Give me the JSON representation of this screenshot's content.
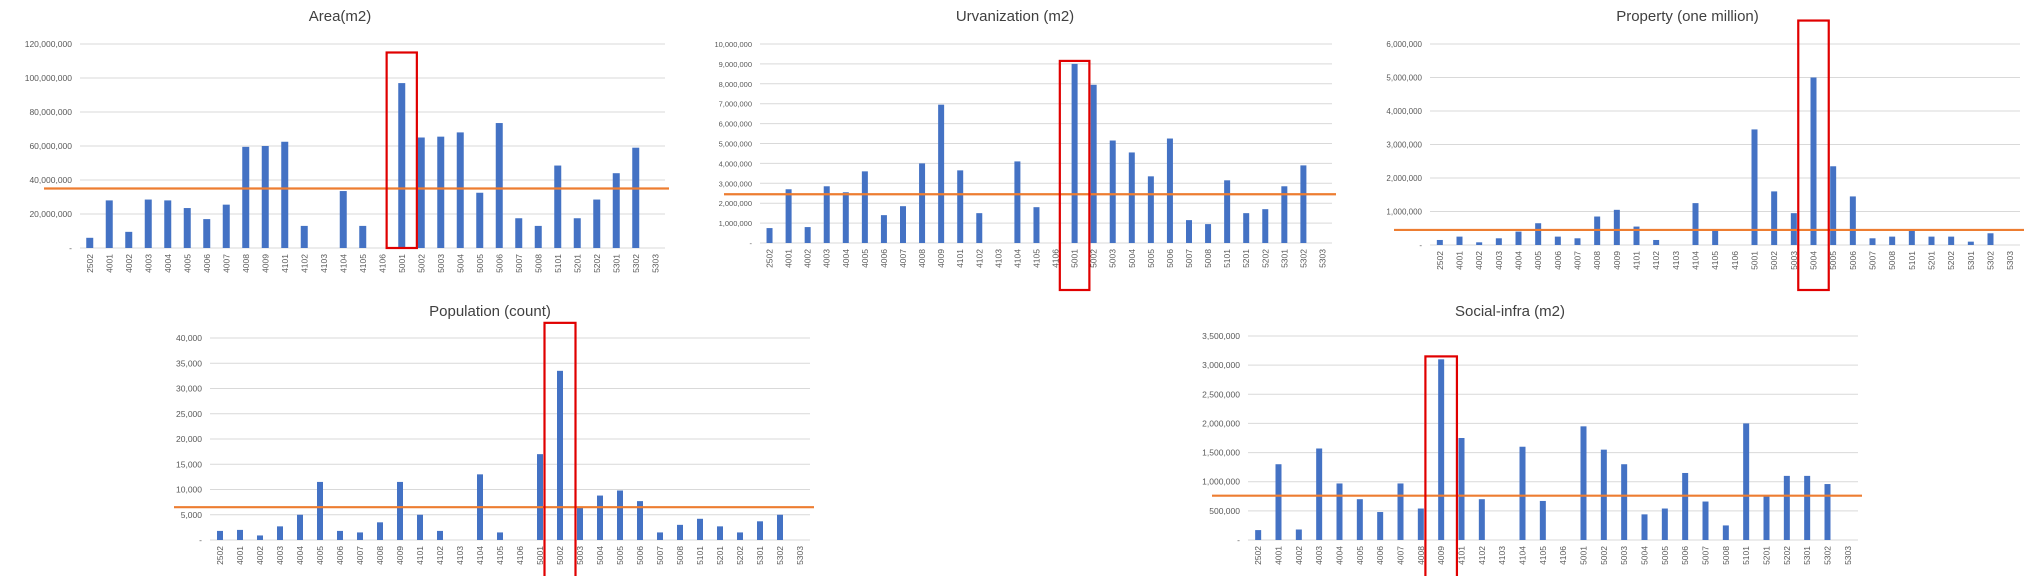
{
  "colors": {
    "bar": "#4472C4",
    "average_line": "#ED7D31",
    "highlight_box": "#E00000",
    "grid": "#D9D9D9",
    "text": "#595959",
    "title": "#404040"
  },
  "chart_data": [
    {
      "type": "bar",
      "title": "Area(m2)",
      "categories": [
        "2502",
        "4001",
        "4002",
        "4003",
        "4004",
        "4005",
        "4006",
        "4007",
        "4008",
        "4009",
        "4101",
        "4102",
        "4103",
        "4104",
        "4105",
        "4106",
        "5001",
        "5002",
        "5003",
        "5004",
        "5005",
        "5006",
        "5007",
        "5008",
        "5101",
        "5201",
        "5202",
        "5301",
        "5302",
        "5303"
      ],
      "values": [
        6000000,
        28000000,
        9500000,
        28500000,
        28000000,
        23500000,
        17000000,
        25500000,
        59500000,
        60000000,
        62500000,
        13000000,
        0,
        33500000,
        13000000,
        0,
        97000000,
        65000000,
        65500000,
        68000000,
        32500000,
        73500000,
        17500000,
        13000000,
        48500000,
        17500000,
        28500000,
        44000000,
        59000000,
        0
      ],
      "ylim": [
        0,
        120000000
      ],
      "yticks": [
        0,
        20000000,
        40000000,
        60000000,
        80000000,
        100000000,
        120000000
      ],
      "ytick_labels": [
        "-",
        "20,000,000",
        "40,000,000",
        "60,000,000",
        "80,000,000",
        "100,000,000",
        "120,000,000"
      ],
      "average": 35000000,
      "highlight_category": "5001",
      "highlight_range": [
        0,
        115000000
      ]
    },
    {
      "type": "bar",
      "title": "Urvanization (m2)",
      "categories": [
        "2502",
        "4001",
        "4002",
        "4003",
        "4004",
        "4005",
        "4006",
        "4007",
        "4008",
        "4009",
        "4101",
        "4102",
        "4103",
        "4104",
        "4105",
        "4106",
        "5001",
        "5002",
        "5003",
        "5004",
        "5005",
        "5006",
        "5007",
        "5008",
        "5101",
        "5201",
        "5202",
        "5301",
        "5302",
        "5303"
      ],
      "values": [
        750000,
        2700000,
        800000,
        2850000,
        2550000,
        3600000,
        1400000,
        1850000,
        4000000,
        6950000,
        3650000,
        1500000,
        0,
        4100000,
        1800000,
        0,
        9000000,
        7950000,
        5150000,
        4550000,
        3350000,
        5250000,
        1150000,
        950000,
        3150000,
        1500000,
        1700000,
        2850000,
        3900000,
        0
      ],
      "ylim": [
        0,
        10000000
      ],
      "yticks": [
        0,
        1000000,
        2000000,
        3000000,
        4000000,
        5000000,
        6000000,
        7000000,
        8000000,
        9000000,
        10000000
      ],
      "ytick_labels": [
        "-",
        "1,000,000",
        "2,000,000",
        "3,000,000",
        "4,000,000",
        "5,000,000",
        "6,000,000",
        "7,000,000",
        "8,000,000",
        "9,000,000",
        "10,000,000"
      ],
      "average": 2450000,
      "highlight_category": "5001",
      "highlight_range": [
        -4500000,
        9150000
      ]
    },
    {
      "type": "bar",
      "title": "Property (one million)",
      "categories": [
        "2502",
        "4001",
        "4002",
        "4003",
        "4004",
        "4005",
        "4006",
        "4007",
        "4008",
        "4009",
        "4101",
        "4102",
        "4103",
        "4104",
        "4105",
        "4106",
        "5001",
        "5002",
        "5003",
        "5004",
        "5005",
        "5006",
        "5007",
        "5008",
        "5101",
        "5201",
        "5202",
        "5301",
        "5302",
        "5303"
      ],
      "values": [
        150000,
        250000,
        80000,
        200000,
        400000,
        650000,
        250000,
        200000,
        850000,
        1050000,
        550000,
        150000,
        0,
        1250000,
        450000,
        0,
        3450000,
        1600000,
        950000,
        5000000,
        2350000,
        1450000,
        200000,
        250000,
        450000,
        250000,
        250000,
        100000,
        350000,
        0
      ],
      "ylim": [
        0,
        6000000
      ],
      "yticks": [
        0,
        1000000,
        2000000,
        3000000,
        4000000,
        5000000,
        6000000
      ],
      "ytick_labels": [
        "-",
        "1,000,000",
        "2,000,000",
        "3,000,000",
        "4,000,000",
        "5,000,000",
        "6,000,000"
      ],
      "average": 450000,
      "highlight_category": "5004",
      "highlight_range": [
        -2700000,
        6700000
      ]
    },
    {
      "type": "bar",
      "title": "Population (count)",
      "categories": [
        "2502",
        "4001",
        "4002",
        "4003",
        "4004",
        "4005",
        "4006",
        "4007",
        "4008",
        "4009",
        "4101",
        "4102",
        "4103",
        "4104",
        "4105",
        "4106",
        "5001",
        "5002",
        "5003",
        "5004",
        "5005",
        "5006",
        "5007",
        "5008",
        "5101",
        "5201",
        "5202",
        "5301",
        "5302",
        "5303"
      ],
      "values": [
        1800,
        2000,
        900,
        2700,
        5000,
        11500,
        1800,
        1500,
        3500,
        11500,
        5000,
        1800,
        0,
        13000,
        1500,
        0,
        17000,
        33500,
        6500,
        8800,
        9800,
        7700,
        1500,
        3000,
        4200,
        2700,
        1500,
        3700,
        5000,
        0
      ],
      "ylim": [
        0,
        40000
      ],
      "yticks": [
        0,
        5000,
        10000,
        15000,
        20000,
        25000,
        30000,
        35000,
        40000
      ],
      "ytick_labels": [
        "-",
        "5,000",
        "10,000",
        "15,000",
        "20,000",
        "25,000",
        "30,000",
        "35,000",
        "40,000"
      ],
      "average": 6500,
      "highlight_category": "5002",
      "highlight_range": [
        -9000,
        43000
      ]
    },
    {
      "type": "bar",
      "title": "Social-infra (m2)",
      "categories": [
        "2502",
        "4001",
        "4002",
        "4003",
        "4004",
        "4005",
        "4006",
        "4007",
        "4008",
        "4009",
        "4101",
        "4102",
        "4103",
        "4104",
        "4105",
        "4106",
        "5001",
        "5002",
        "5003",
        "5004",
        "5005",
        "5006",
        "5007",
        "5008",
        "5101",
        "5201",
        "5202",
        "5301",
        "5302",
        "5303"
      ],
      "values": [
        170000,
        1300000,
        180000,
        1570000,
        970000,
        700000,
        480000,
        970000,
        540000,
        3100000,
        1750000,
        700000,
        0,
        1600000,
        670000,
        0,
        1950000,
        1550000,
        1300000,
        440000,
        540000,
        1150000,
        660000,
        250000,
        2000000,
        750000,
        1100000,
        1100000,
        960000,
        0
      ],
      "ylim": [
        0,
        3500000
      ],
      "yticks": [
        0,
        500000,
        1000000,
        1500000,
        2000000,
        2500000,
        3000000,
        3500000
      ],
      "ytick_labels": [
        "-",
        "500,000",
        "1,000,000",
        "1,500,000",
        "2,000,000",
        "2,500,000",
        "3,000,000",
        "3,500,000"
      ],
      "average": 760000,
      "highlight_category": "4009",
      "highlight_range": [
        -900000,
        3150000
      ]
    }
  ]
}
